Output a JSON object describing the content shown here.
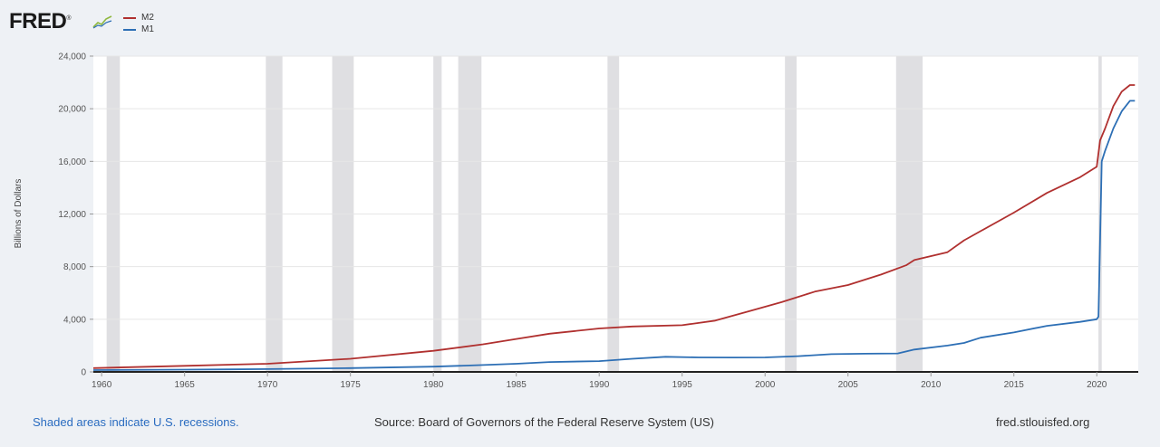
{
  "logo": {
    "text": "FRED",
    "registered": "®"
  },
  "colors": {
    "m2": "#b0302f",
    "m1": "#2d6fb5",
    "recession": "#dfdfe2",
    "plot_bg": "#ffffff",
    "axis": "#222222"
  },
  "footer": {
    "recessions_note": "Shaded areas indicate U.S. recessions.",
    "source": "Source: Board of Governors of the Federal Reserve System (US)",
    "site": "fred.stlouisfed.org"
  },
  "chart_data": {
    "type": "line",
    "title": "",
    "xlabel": "",
    "ylabel": "Billions of Dollars",
    "xlim": [
      1959.5,
      2022.5
    ],
    "ylim": [
      0,
      24000
    ],
    "yticks": [
      0,
      4000,
      8000,
      12000,
      16000,
      20000,
      24000
    ],
    "ytick_labels": [
      "0",
      "4,000",
      "8,000",
      "12,000",
      "16,000",
      "20,000",
      "24,000"
    ],
    "xticks": [
      1960,
      1965,
      1970,
      1975,
      1980,
      1985,
      1990,
      1995,
      2000,
      2005,
      2010,
      2015,
      2020
    ],
    "xtick_labels": [
      "1960",
      "1965",
      "1970",
      "1975",
      "1980",
      "1985",
      "1990",
      "1995",
      "2000",
      "2005",
      "2010",
      "2015",
      "2020"
    ],
    "grid": true,
    "legend": "top-left",
    "recessions": [
      [
        1960.3,
        1961.1
      ],
      [
        1969.9,
        1970.9
      ],
      [
        1973.9,
        1975.2
      ],
      [
        1980.0,
        1980.5
      ],
      [
        1981.5,
        1982.9
      ],
      [
        1990.5,
        1991.2
      ],
      [
        2001.2,
        2001.9
      ],
      [
        2007.9,
        2009.5
      ],
      [
        2020.1,
        2020.3
      ]
    ],
    "series": [
      {
        "name": "M2",
        "x": [
          1959.5,
          1965,
          1970,
          1975,
          1980,
          1983,
          1985,
          1987,
          1990,
          1992,
          1995,
          1997,
          1999,
          2001,
          2003,
          2005,
          2007,
          2008.5,
          2009,
          2011,
          2012,
          2013,
          2015,
          2017,
          2019,
          2020,
          2020.2,
          2020.5,
          2021,
          2021.5,
          2022,
          2022.3
        ],
        "values": [
          290,
          460,
          620,
          1000,
          1600,
          2100,
          2500,
          2900,
          3300,
          3450,
          3550,
          3900,
          4600,
          5300,
          6100,
          6600,
          7400,
          8100,
          8500,
          9100,
          10000,
          10700,
          12100,
          13600,
          14800,
          15600,
          17600,
          18500,
          20200,
          21300,
          21800,
          21800
        ]
      },
      {
        "name": "M1",
        "x": [
          1959.5,
          1965,
          1970,
          1975,
          1980,
          1983,
          1985,
          1987,
          1990,
          1992,
          1994,
          1996,
          1998,
          2000,
          2002,
          2004,
          2006,
          2008,
          2009,
          2011,
          2012,
          2013,
          2015,
          2017,
          2019,
          2020,
          2020.1,
          2020.3,
          2020.5,
          2021,
          2021.5,
          2022,
          2022.3
        ],
        "values": [
          140,
          170,
          210,
          290,
          400,
          520,
          620,
          750,
          820,
          1000,
          1150,
          1100,
          1090,
          1100,
          1200,
          1350,
          1380,
          1400,
          1700,
          2000,
          2200,
          2600,
          3000,
          3500,
          3800,
          4000,
          4200,
          16000,
          16800,
          18500,
          19800,
          20600,
          20600
        ]
      }
    ]
  }
}
